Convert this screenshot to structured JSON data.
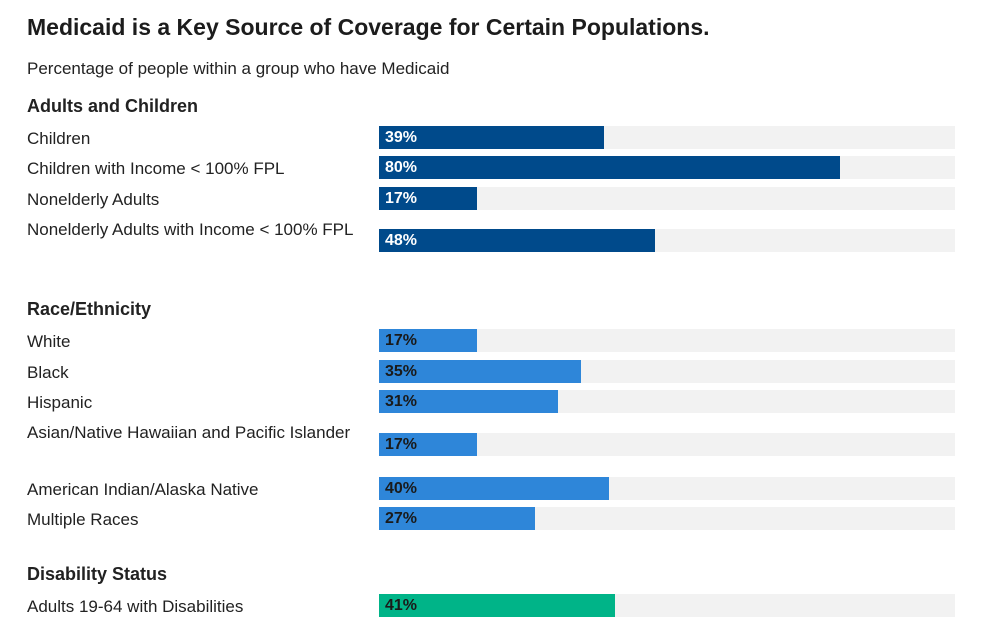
{
  "chart_data": {
    "type": "bar",
    "orientation": "horizontal",
    "title": "Medicaid is a Key Source of Coverage for Certain Populations.",
    "subtitle": "Percentage of people within a group who have Medicaid",
    "xlim": [
      0,
      100
    ],
    "unit": "%",
    "groups": [
      {
        "name": "Adults and Children",
        "color": "#004a8b",
        "label_color": "#ffffff",
        "rows": [
          {
            "label": "Children",
            "value": 39
          },
          {
            "label": "Children with Income < 100% FPL",
            "value": 80
          },
          {
            "label": "Nonelderly Adults",
            "value": 17
          },
          {
            "label": "Nonelderly Adults with Income < 100% FPL",
            "value": 48
          }
        ]
      },
      {
        "name": "Race/Ethnicity",
        "color": "#2e86d9",
        "label_color": "#1a1a1a",
        "rows": [
          {
            "label": "White",
            "value": 17
          },
          {
            "label": "Black",
            "value": 35
          },
          {
            "label": "Hispanic",
            "value": 31
          },
          {
            "label": "Asian/Native Hawaiian and Pacific Islander",
            "value": 17
          },
          {
            "label": "American Indian/Alaska Native",
            "value": 40
          },
          {
            "label": "Multiple Races",
            "value": 27
          }
        ]
      },
      {
        "name": "Disability Status",
        "color": "#00b488",
        "label_color": "#1a1a1a",
        "rows": [
          {
            "label": "Adults 19-64 with Disabilities",
            "value": 41
          }
        ]
      }
    ]
  }
}
